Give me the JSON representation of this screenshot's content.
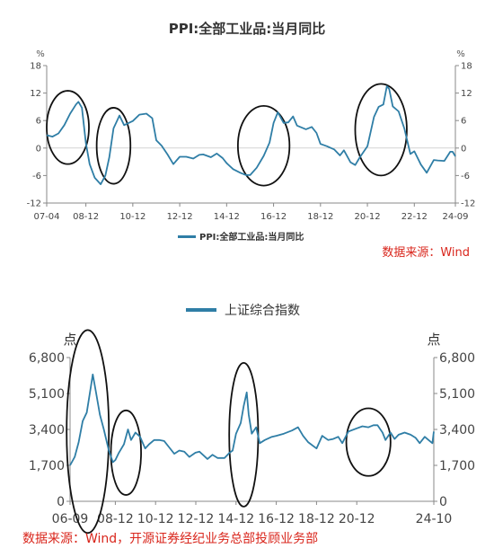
{
  "chart_data": [
    {
      "type": "line",
      "title": "PPI:全部工业品:当月同比",
      "unit_left": "%",
      "unit_right": "%",
      "ylim": [
        -12,
        18
      ],
      "yticks": [
        -12,
        -6,
        0,
        6,
        12,
        18
      ],
      "ytick_labels": [
        "-12",
        "-6",
        "0",
        "6",
        "12",
        "18"
      ],
      "xticks": [
        {
          "label": "07-04",
          "t": 2007.25
        },
        {
          "label": "08-12",
          "t": 2008.92
        },
        {
          "label": "10-12",
          "t": 2010.92
        },
        {
          "label": "12-12",
          "t": 2012.92
        },
        {
          "label": "14-12",
          "t": 2014.92
        },
        {
          "label": "16-12",
          "t": 2016.92
        },
        {
          "label": "18-12",
          "t": 2018.92
        },
        {
          "label": "20-12",
          "t": 2020.92
        },
        {
          "label": "22-12",
          "t": 2022.92
        },
        {
          "label": "24-09",
          "t": 2024.67
        }
      ],
      "xlim": [
        2007.25,
        2024.67
      ],
      "legend": "PPI:全部工业品:当月同比",
      "legend_position": "bottom",
      "source": "数据来源：Wind",
      "color": "#2f7ea6",
      "grid": false,
      "series": [
        {
          "values": [
            [
              2007.25,
              2.8
            ],
            [
              2007.5,
              2.5
            ],
            [
              2007.75,
              3.2
            ],
            [
              2008.0,
              5.0
            ],
            [
              2008.25,
              7.5
            ],
            [
              2008.5,
              9.5
            ],
            [
              2008.6,
              10.1
            ],
            [
              2008.75,
              8.8
            ],
            [
              2008.92,
              1.1
            ],
            [
              2009.08,
              -3.5
            ],
            [
              2009.3,
              -6.5
            ],
            [
              2009.55,
              -7.9
            ],
            [
              2009.75,
              -6.0
            ],
            [
              2009.92,
              -2.0
            ],
            [
              2010.1,
              4.3
            ],
            [
              2010.35,
              7.1
            ],
            [
              2010.55,
              5.0
            ],
            [
              2010.75,
              5.5
            ],
            [
              2010.92,
              5.9
            ],
            [
              2011.2,
              7.3
            ],
            [
              2011.5,
              7.5
            ],
            [
              2011.75,
              6.5
            ],
            [
              2011.92,
              1.7
            ],
            [
              2012.15,
              0.5
            ],
            [
              2012.4,
              -1.4
            ],
            [
              2012.65,
              -3.5
            ],
            [
              2012.92,
              -1.9
            ],
            [
              2013.2,
              -1.9
            ],
            [
              2013.5,
              -2.3
            ],
            [
              2013.75,
              -1.5
            ],
            [
              2013.92,
              -1.4
            ],
            [
              2014.25,
              -2.0
            ],
            [
              2014.5,
              -1.2
            ],
            [
              2014.75,
              -2.2
            ],
            [
              2014.92,
              -3.3
            ],
            [
              2015.2,
              -4.6
            ],
            [
              2015.5,
              -5.4
            ],
            [
              2015.75,
              -5.9
            ],
            [
              2015.92,
              -5.9
            ],
            [
              2016.2,
              -4.3
            ],
            [
              2016.5,
              -1.7
            ],
            [
              2016.75,
              1.2
            ],
            [
              2016.92,
              5.5
            ],
            [
              2017.1,
              7.8
            ],
            [
              2017.35,
              5.5
            ],
            [
              2017.55,
              5.6
            ],
            [
              2017.75,
              6.9
            ],
            [
              2017.92,
              4.9
            ],
            [
              2018.3,
              4.1
            ],
            [
              2018.55,
              4.6
            ],
            [
              2018.75,
              3.3
            ],
            [
              2018.92,
              0.9
            ],
            [
              2019.2,
              0.4
            ],
            [
              2019.5,
              -0.3
            ],
            [
              2019.75,
              -1.6
            ],
            [
              2019.92,
              -0.5
            ],
            [
              2020.2,
              -3.1
            ],
            [
              2020.4,
              -3.7
            ],
            [
              2020.6,
              -2.0
            ],
            [
              2020.92,
              0.4
            ],
            [
              2021.2,
              6.8
            ],
            [
              2021.4,
              9.0
            ],
            [
              2021.6,
              9.5
            ],
            [
              2021.75,
              13.5
            ],
            [
              2021.85,
              12.9
            ],
            [
              2022.0,
              9.1
            ],
            [
              2022.25,
              8.0
            ],
            [
              2022.5,
              4.2
            ],
            [
              2022.75,
              -1.3
            ],
            [
              2022.92,
              -0.7
            ],
            [
              2023.2,
              -3.6
            ],
            [
              2023.45,
              -5.4
            ],
            [
              2023.75,
              -2.6
            ],
            [
              2023.92,
              -2.7
            ],
            [
              2024.2,
              -2.8
            ],
            [
              2024.45,
              -0.8
            ],
            [
              2024.55,
              -0.8
            ],
            [
              2024.67,
              -1.8
            ]
          ]
        }
      ],
      "annotations": [
        {
          "kind": "ellipse",
          "t": 2008.15,
          "v": 4.5,
          "rt": 0.9,
          "rv": 8.0
        },
        {
          "kind": "ellipse",
          "t": 2010.1,
          "v": 0.5,
          "rt": 0.72,
          "rv": 8.3
        },
        {
          "kind": "ellipse",
          "t": 2016.5,
          "v": 0.5,
          "rt": 1.1,
          "rv": 8.7
        },
        {
          "kind": "ellipse",
          "t": 2021.5,
          "v": 4.0,
          "rt": 1.1,
          "rv": 10.0
        }
      ]
    },
    {
      "type": "line",
      "title": "",
      "legend": "上证综合指数",
      "legend_position": "top",
      "unit_left": "点",
      "unit_right": "点",
      "ylim": [
        0,
        6800
      ],
      "yticks": [
        0,
        1700,
        3400,
        5100,
        6800
      ],
      "ytick_labels": [
        "0",
        "1,700",
        "3,400",
        "5,100",
        "6,800"
      ],
      "xticks": [
        {
          "label": "06-09",
          "t": 2006.67
        },
        {
          "label": "08-12",
          "t": 2008.92
        },
        {
          "label": "10-12",
          "t": 2010.92
        },
        {
          "label": "12-12",
          "t": 2012.92
        },
        {
          "label": "14-12",
          "t": 2014.92
        },
        {
          "label": "16-12",
          "t": 2016.92
        },
        {
          "label": "18-12",
          "t": 2018.92
        },
        {
          "label": "20-12",
          "t": 2020.92
        },
        {
          "label": "24-10",
          "t": 2024.75
        }
      ],
      "xlim": [
        2006.67,
        2024.75
      ],
      "source": "数据来源：Wind，开源证券经纪业务总部投顾业务部",
      "color": "#2f7ea6",
      "grid": false,
      "series": [
        {
          "name": "上证综合指数",
          "values": [
            [
              2006.67,
              1700
            ],
            [
              2006.9,
              2100
            ],
            [
              2007.1,
              2800
            ],
            [
              2007.3,
              3800
            ],
            [
              2007.5,
              4200
            ],
            [
              2007.7,
              5400
            ],
            [
              2007.8,
              6000
            ],
            [
              2007.95,
              5200
            ],
            [
              2008.15,
              4100
            ],
            [
              2008.35,
              3400
            ],
            [
              2008.6,
              2400
            ],
            [
              2008.8,
              1850
            ],
            [
              2008.92,
              1950
            ],
            [
              2009.1,
              2300
            ],
            [
              2009.35,
              2700
            ],
            [
              2009.55,
              3400
            ],
            [
              2009.7,
              2900
            ],
            [
              2009.92,
              3250
            ],
            [
              2010.15,
              3050
            ],
            [
              2010.4,
              2500
            ],
            [
              2010.6,
              2700
            ],
            [
              2010.85,
              2900
            ],
            [
              2011.1,
              2900
            ],
            [
              2011.35,
              2850
            ],
            [
              2011.6,
              2550
            ],
            [
              2011.85,
              2250
            ],
            [
              2012.1,
              2400
            ],
            [
              2012.35,
              2350
            ],
            [
              2012.6,
              2100
            ],
            [
              2012.9,
              2300
            ],
            [
              2013.1,
              2350
            ],
            [
              2013.5,
              2000
            ],
            [
              2013.75,
              2200
            ],
            [
              2014.0,
              2050
            ],
            [
              2014.35,
              2050
            ],
            [
              2014.6,
              2300
            ],
            [
              2014.75,
              2400
            ],
            [
              2014.92,
              3200
            ],
            [
              2015.15,
              3700
            ],
            [
              2015.3,
              4500
            ],
            [
              2015.45,
              5150
            ],
            [
              2015.55,
              4100
            ],
            [
              2015.7,
              3200
            ],
            [
              2015.92,
              3500
            ],
            [
              2016.1,
              2750
            ],
            [
              2016.35,
              2900
            ],
            [
              2016.7,
              3050
            ],
            [
              2016.92,
              3100
            ],
            [
              2017.3,
              3200
            ],
            [
              2017.7,
              3350
            ],
            [
              2018.0,
              3500
            ],
            [
              2018.25,
              3100
            ],
            [
              2018.5,
              2800
            ],
            [
              2018.92,
              2500
            ],
            [
              2019.2,
              3100
            ],
            [
              2019.5,
              2900
            ],
            [
              2019.75,
              2950
            ],
            [
              2020.0,
              3050
            ],
            [
              2020.2,
              2750
            ],
            [
              2020.5,
              3300
            ],
            [
              2020.92,
              3450
            ],
            [
              2021.2,
              3550
            ],
            [
              2021.5,
              3500
            ],
            [
              2021.75,
              3600
            ],
            [
              2021.95,
              3600
            ],
            [
              2022.2,
              3250
            ],
            [
              2022.35,
              2900
            ],
            [
              2022.6,
              3250
            ],
            [
              2022.8,
              2950
            ],
            [
              2023.0,
              3150
            ],
            [
              2023.3,
              3250
            ],
            [
              2023.6,
              3150
            ],
            [
              2023.85,
              3000
            ],
            [
              2024.05,
              2750
            ],
            [
              2024.3,
              3050
            ],
            [
              2024.55,
              2850
            ],
            [
              2024.68,
              2750
            ],
            [
              2024.75,
              3300
            ]
          ]
        }
      ],
      "annotations": [
        {
          "kind": "ellipse",
          "t": 2007.55,
          "v": 3300,
          "rt": 1.05,
          "rv": 4800
        },
        {
          "kind": "ellipse",
          "t": 2009.45,
          "v": 2300,
          "rt": 0.75,
          "rv": 2000
        },
        {
          "kind": "ellipse",
          "t": 2015.3,
          "v": 3150,
          "rt": 0.72,
          "rv": 3400
        },
        {
          "kind": "ellipse",
          "t": 2021.5,
          "v": 2800,
          "rt": 1.1,
          "rv": 1600
        }
      ]
    }
  ]
}
